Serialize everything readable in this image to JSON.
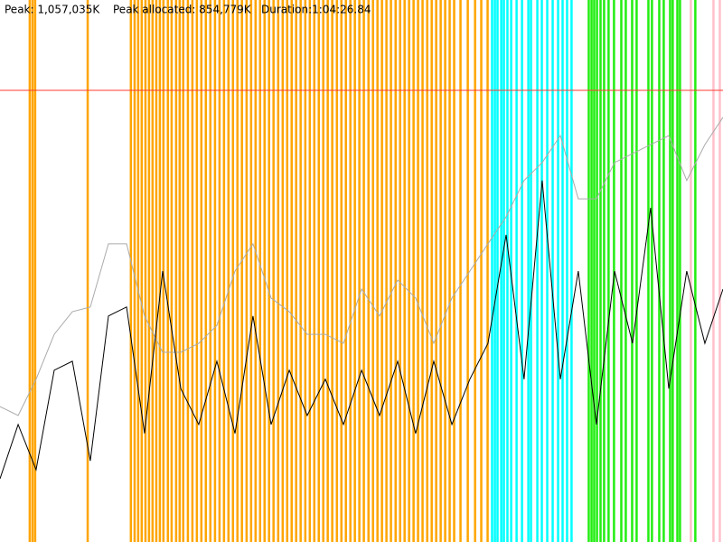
{
  "header": {
    "peak": "Peak: 1,057,035K",
    "peak_allocated": "Peak allocated: 854,779K",
    "duration": "Duration:1:04:26.84"
  },
  "chart_data": {
    "type": "line",
    "xlim": [
      0,
      3867
    ],
    "ylim": [
      0,
      1268442
    ],
    "peak_value": 1057035,
    "peak_color": "#ff3b30",
    "events": [
      {
        "color": "#ffa500",
        "x": [
          159,
          174,
          188,
          469,
          700,
          720,
          739,
          758,
          778,
          797,
          816,
          836,
          855,
          874,
          898,
          918,
          942,
          961,
          980,
          1005,
          1029,
          1053,
          1077,
          1101,
          1125,
          1150,
          1174,
          1198,
          1222,
          1246,
          1270,
          1294,
          1319,
          1343,
          1367,
          1391,
          1415,
          1439,
          1463,
          1488,
          1512,
          1536,
          1560,
          1584,
          1608,
          1633,
          1657,
          1681,
          1705,
          1729,
          1753,
          1777,
          1802,
          1826,
          1850,
          1874,
          1898,
          1922,
          1946,
          1971,
          1995,
          2019,
          2043,
          2067,
          2091,
          2116,
          2140,
          2164,
          2188,
          2212,
          2236,
          2260,
          2285,
          2309,
          2333,
          2357,
          2381,
          2405,
          2429,
          2463,
          2502,
          2541,
          2574,
          2608
        ]
      },
      {
        "color": "#00ffff",
        "x": [
          2632,
          2647,
          2661,
          2681,
          2695,
          2714,
          2734,
          2763,
          2792,
          2826,
          2840,
          2874,
          2898,
          2927,
          2956,
          2985,
          3009,
          3033,
          3057
        ]
      },
      {
        "color": "#22ee11",
        "x": [
          3149,
          3164,
          3178,
          3193,
          3212,
          3231,
          3255,
          3284,
          3323,
          3347,
          3381,
          3405,
          3468,
          3487,
          3526,
          3550,
          3584,
          3598,
          3623,
          3637,
          3719
        ]
      },
      {
        "color": "#ffc0cb",
        "x": [
          3695,
          3816,
          3850
        ]
      }
    ],
    "x": [
      0,
      97,
      193,
      290,
      387,
      483,
      580,
      677,
      773,
      870,
      967,
      1063,
      1160,
      1257,
      1353,
      1450,
      1547,
      1643,
      1740,
      1837,
      1934,
      2030,
      2127,
      2223,
      2320,
      2417,
      2513,
      2610,
      2707,
      2803,
      2900,
      2997,
      3093,
      3190,
      3287,
      3383,
      3480,
      3577,
      3673,
      3770,
      3867
    ],
    "series": [
      {
        "color": "#aaaaaa",
        "values": [
          317000,
          296000,
          381000,
          486000,
          539000,
          550000,
          698000,
          698000,
          529000,
          444000,
          444000,
          465000,
          507000,
          634000,
          698000,
          571000,
          539000,
          486000,
          486000,
          465000,
          592000,
          529000,
          613000,
          571000,
          465000,
          571000,
          634000,
          698000,
          761000,
          846000,
          888000,
          951000,
          803000,
          803000,
          888000,
          909000,
          930000,
          951000,
          846000,
          930000,
          994000
        ]
      },
      {
        "color": "#000000",
        "values": [
          148000,
          275000,
          169000,
          402000,
          423000,
          190000,
          529000,
          550000,
          254000,
          634000,
          359000,
          275000,
          423000,
          254000,
          529000,
          275000,
          402000,
          296000,
          381000,
          275000,
          402000,
          296000,
          423000,
          254000,
          423000,
          275000,
          381000,
          465000,
          719000,
          381000,
          846000,
          381000,
          634000,
          275000,
          634000,
          465000,
          782000,
          359000,
          634000,
          465000,
          592000
        ]
      }
    ]
  }
}
